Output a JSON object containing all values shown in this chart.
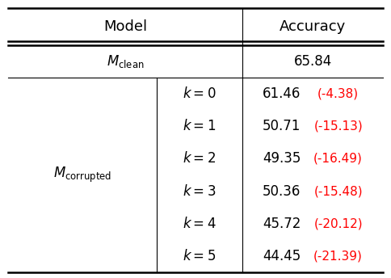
{
  "col_headers": [
    "Model",
    "Accuracy"
  ],
  "clean_model_label": "$M_{\\mathrm{clean}}$",
  "clean_accuracy": "65.84",
  "corrupted_model_label": "$M_{\\mathrm{corrupted}}$",
  "k_labels": [
    "$k = 0$",
    "$k = 1$",
    "$k = 2$",
    "$k = 3$",
    "$k = 4$",
    "$k = 5$"
  ],
  "accuracies": [
    "61.46",
    "50.71",
    "49.35",
    "50.36",
    "45.72",
    "44.45"
  ],
  "deltas": [
    "(-4.38)",
    "(-15.13)",
    "(-16.49)",
    "(-15.48)",
    "(-20.12)",
    "(-21.39)"
  ],
  "bg_color": "#ffffff",
  "text_color": "#000000",
  "red_color": "#ff0000",
  "header_fontsize": 13,
  "cell_fontsize": 12,
  "fig_width": 4.84,
  "fig_height": 3.44
}
